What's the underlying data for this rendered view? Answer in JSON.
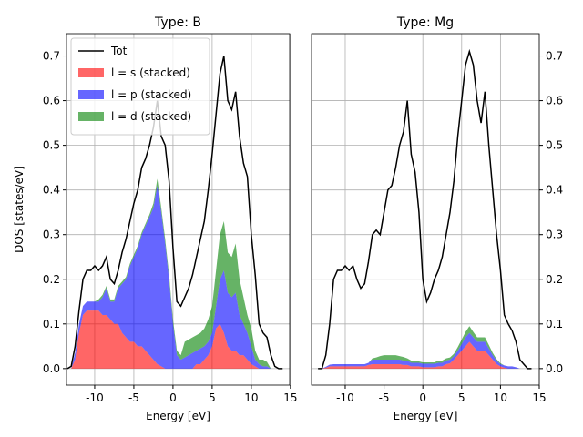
{
  "chart_data": [
    {
      "type": "stacked_area",
      "title": "Type: B",
      "xlabel": "Energy [eV]",
      "ylabel": "DOS [states/eV]",
      "x": [
        -13.5,
        -13,
        -12.5,
        -12,
        -11.5,
        -11,
        -10.5,
        -10,
        -9.5,
        -9,
        -8.5,
        -8,
        -7.5,
        -7,
        -6.5,
        -6,
        -5.5,
        -5,
        -4.5,
        -4,
        -3.5,
        -3,
        -2.5,
        -2,
        -1.5,
        -1,
        -0.5,
        0,
        0.5,
        1,
        1.5,
        2,
        2.5,
        3,
        3.5,
        4,
        4.5,
        5,
        5.5,
        6,
        6.5,
        7,
        7.5,
        8,
        8.5,
        9,
        9.5,
        10,
        10.5,
        11,
        11.5,
        12,
        12.5,
        13,
        13.5,
        14
      ],
      "line": {
        "name": "Tot",
        "color": "#000000",
        "values": [
          0,
          0.005,
          0.05,
          0.13,
          0.2,
          0.22,
          0.22,
          0.23,
          0.22,
          0.23,
          0.25,
          0.2,
          0.19,
          0.22,
          0.26,
          0.29,
          0.33,
          0.37,
          0.4,
          0.45,
          0.47,
          0.5,
          0.54,
          0.6,
          0.52,
          0.5,
          0.42,
          0.27,
          0.15,
          0.14,
          0.16,
          0.18,
          0.21,
          0.25,
          0.29,
          0.33,
          0.4,
          0.48,
          0.57,
          0.66,
          0.7,
          0.6,
          0.58,
          0.62,
          0.52,
          0.46,
          0.43,
          0.3,
          0.21,
          0.1,
          0.08,
          0.07,
          0.03,
          0.005,
          0,
          0
        ]
      },
      "series": [
        {
          "name": "l = s (stacked)",
          "color": "#ff0000",
          "values": [
            0,
            0,
            0.02,
            0.08,
            0.12,
            0.13,
            0.13,
            0.13,
            0.13,
            0.12,
            0.12,
            0.11,
            0.1,
            0.1,
            0.08,
            0.07,
            0.06,
            0.06,
            0.05,
            0.05,
            0.04,
            0.03,
            0.02,
            0.01,
            0.005,
            0,
            0,
            0,
            0,
            0,
            0,
            0,
            0,
            0.01,
            0.01,
            0.02,
            0.03,
            0.05,
            0.09,
            0.1,
            0.08,
            0.05,
            0.04,
            0.04,
            0.03,
            0.03,
            0.02,
            0.01,
            0.005,
            0,
            0,
            0,
            0,
            0,
            0,
            0
          ]
        },
        {
          "name": "l = p (stacked)",
          "color": "#0000ff",
          "values": [
            0,
            0,
            0.015,
            0.02,
            0.02,
            0.02,
            0.02,
            0.02,
            0.02,
            0.04,
            0.06,
            0.04,
            0.05,
            0.08,
            0.11,
            0.13,
            0.17,
            0.19,
            0.22,
            0.25,
            0.28,
            0.31,
            0.34,
            0.4,
            0.345,
            0.28,
            0.2,
            0.1,
            0.03,
            0.02,
            0.025,
            0.03,
            0.035,
            0.03,
            0.035,
            0.03,
            0.03,
            0.03,
            0.05,
            0.1,
            0.14,
            0.12,
            0.12,
            0.13,
            0.09,
            0.07,
            0.06,
            0.04,
            0.015,
            0.01,
            0.005,
            0.005,
            0,
            0,
            0,
            0
          ]
        },
        {
          "name": "l = d (stacked)",
          "color": "#008000",
          "values": [
            0,
            0,
            0,
            0,
            0,
            0,
            0,
            0,
            0.005,
            0.005,
            0.005,
            0.005,
            0.005,
            0.005,
            0.005,
            0.005,
            0.005,
            0.005,
            0.005,
            0.005,
            0.005,
            0.005,
            0.01,
            0.015,
            0.01,
            0.01,
            0.01,
            0.01,
            0.01,
            0.01,
            0.035,
            0.035,
            0.035,
            0.035,
            0.035,
            0.04,
            0.05,
            0.06,
            0.08,
            0.1,
            0.11,
            0.09,
            0.09,
            0.11,
            0.08,
            0.06,
            0.04,
            0.04,
            0.02,
            0.01,
            0.015,
            0.01,
            0,
            0,
            0,
            0
          ]
        }
      ],
      "alpha": 0.6,
      "xlim": [
        -13.6,
        14.9
      ],
      "ylim": [
        -0.037,
        0.75
      ],
      "xticks": [
        -10,
        -5,
        0,
        5,
        10,
        15
      ],
      "yticks": [
        {
          "value": 0,
          "label": "0.0"
        },
        0.1,
        0.2,
        0.3,
        0.4,
        0.5,
        0.6,
        0.7
      ],
      "grid": true,
      "legend": "upper left",
      "ytick_side": "left"
    },
    {
      "type": "stacked_area",
      "title": "Type: Mg",
      "xlabel": "Energy [eV]",
      "x": [
        -13.5,
        -13,
        -12.5,
        -12,
        -11.5,
        -11,
        -10.5,
        -10,
        -9.5,
        -9,
        -8.5,
        -8,
        -7.5,
        -7,
        -6.5,
        -6,
        -5.5,
        -5,
        -4.5,
        -4,
        -3.5,
        -3,
        -2.5,
        -2,
        -1.5,
        -1,
        -0.5,
        0,
        0.5,
        1,
        1.5,
        2,
        2.5,
        3,
        3.5,
        4,
        4.5,
        5,
        5.5,
        6,
        6.5,
        7,
        7.5,
        8,
        8.5,
        9,
        9.5,
        10,
        10.5,
        11,
        11.5,
        12,
        12.5,
        13,
        13.5,
        14
      ],
      "line": {
        "color": "#000000",
        "values": [
          0,
          0,
          0.03,
          0.1,
          0.2,
          0.22,
          0.22,
          0.23,
          0.22,
          0.23,
          0.2,
          0.18,
          0.19,
          0.24,
          0.3,
          0.31,
          0.3,
          0.35,
          0.4,
          0.41,
          0.45,
          0.5,
          0.53,
          0.6,
          0.48,
          0.44,
          0.35,
          0.2,
          0.15,
          0.17,
          0.2,
          0.22,
          0.25,
          0.3,
          0.35,
          0.42,
          0.52,
          0.6,
          0.68,
          0.71,
          0.68,
          0.6,
          0.55,
          0.62,
          0.5,
          0.4,
          0.3,
          0.22,
          0.12,
          0.1,
          0.085,
          0.06,
          0.02,
          0.01,
          0,
          0
        ]
      },
      "series": [
        {
          "color": "#ff0000",
          "values": [
            0,
            0,
            0.002,
            0.005,
            0.005,
            0.005,
            0.005,
            0.005,
            0.005,
            0.005,
            0.005,
            0.005,
            0.005,
            0.008,
            0.01,
            0.01,
            0.01,
            0.01,
            0.01,
            0.01,
            0.01,
            0.01,
            0.008,
            0.008,
            0.005,
            0.005,
            0.005,
            0.003,
            0.003,
            0.003,
            0.003,
            0.005,
            0.005,
            0.01,
            0.012,
            0.02,
            0.03,
            0.04,
            0.05,
            0.06,
            0.05,
            0.04,
            0.04,
            0.04,
            0.03,
            0.02,
            0.01,
            0.005,
            0.002,
            0,
            0,
            0,
            0,
            0,
            0,
            0
          ]
        },
        {
          "color": "#0000ff",
          "values": [
            0,
            0,
            0.002,
            0.004,
            0.005,
            0.005,
            0.005,
            0.005,
            0.005,
            0.005,
            0.005,
            0.005,
            0.005,
            0.005,
            0.01,
            0.01,
            0.01,
            0.01,
            0.01,
            0.01,
            0.01,
            0.01,
            0.01,
            0.01,
            0.008,
            0.008,
            0.008,
            0.008,
            0.008,
            0.008,
            0.008,
            0.008,
            0.008,
            0.008,
            0.008,
            0.008,
            0.01,
            0.015,
            0.02,
            0.02,
            0.02,
            0.02,
            0.02,
            0.02,
            0.015,
            0.01,
            0.008,
            0.005,
            0.005,
            0.005,
            0.005,
            0.003,
            0,
            0,
            0,
            0
          ]
        },
        {
          "color": "#008000",
          "values": [
            0,
            0,
            0,
            0,
            0,
            0,
            0,
            0,
            0,
            0,
            0,
            0,
            0,
            0,
            0.003,
            0.005,
            0.008,
            0.01,
            0.01,
            0.01,
            0.01,
            0.008,
            0.008,
            0.005,
            0.005,
            0.003,
            0.003,
            0.003,
            0.003,
            0.003,
            0.003,
            0.005,
            0.005,
            0.005,
            0.005,
            0.005,
            0.008,
            0.01,
            0.012,
            0.015,
            0.012,
            0.01,
            0.01,
            0.01,
            0.008,
            0.005,
            0.003,
            0.002,
            0,
            0,
            0,
            0,
            0,
            0,
            0,
            0
          ]
        }
      ],
      "alpha": 0.6,
      "xlim": [
        -14.34,
        15.0
      ],
      "ylim": [
        -0.037,
        0.75
      ],
      "xticks": [
        -10,
        -5,
        0,
        5,
        10,
        15
      ],
      "yticks": [
        {
          "value": 0,
          "label": "0.0"
        },
        0.1,
        0.2,
        0.3,
        0.4,
        0.5,
        0.6,
        0.7
      ],
      "grid": true,
      "ytick_side": "right"
    }
  ]
}
